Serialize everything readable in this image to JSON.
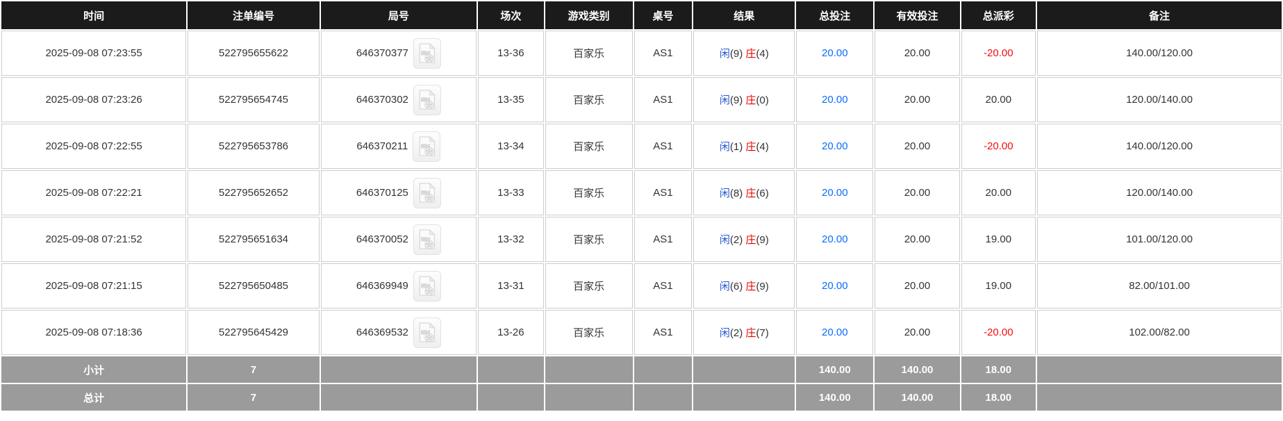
{
  "table": {
    "columns": [
      {
        "key": "time",
        "label": "时间"
      },
      {
        "key": "bet_id",
        "label": "注单编号"
      },
      {
        "key": "round_id",
        "label": "局号"
      },
      {
        "key": "session",
        "label": "场次"
      },
      {
        "key": "game_type",
        "label": "游戏类别"
      },
      {
        "key": "table_no",
        "label": "桌号"
      },
      {
        "key": "result",
        "label": "结果"
      },
      {
        "key": "total_bet",
        "label": "总投注"
      },
      {
        "key": "valid_bet",
        "label": "有效投注"
      },
      {
        "key": "payout",
        "label": "总派彩"
      },
      {
        "key": "remark",
        "label": "备注"
      }
    ],
    "rows": [
      {
        "time": "2025-09-08 07:23:55",
        "bet_id": "522795655622",
        "round_id": "646370377",
        "session": "13-36",
        "game_type": "百家乐",
        "table_no": "AS1",
        "result": {
          "player_label": "闲",
          "player_score": "(9)",
          "banker_label": "庄",
          "banker_score": "(4)"
        },
        "total_bet": "20.00",
        "valid_bet": "20.00",
        "payout": "-20.00",
        "remark": "140.00/120.00"
      },
      {
        "time": "2025-09-08 07:23:26",
        "bet_id": "522795654745",
        "round_id": "646370302",
        "session": "13-35",
        "game_type": "百家乐",
        "table_no": "AS1",
        "result": {
          "player_label": "闲",
          "player_score": "(9)",
          "banker_label": "庄",
          "banker_score": "(0)"
        },
        "total_bet": "20.00",
        "valid_bet": "20.00",
        "payout": "20.00",
        "remark": "120.00/140.00"
      },
      {
        "time": "2025-09-08 07:22:55",
        "bet_id": "522795653786",
        "round_id": "646370211",
        "session": "13-34",
        "game_type": "百家乐",
        "table_no": "AS1",
        "result": {
          "player_label": "闲",
          "player_score": "(1)",
          "banker_label": "庄",
          "banker_score": "(4)"
        },
        "total_bet": "20.00",
        "valid_bet": "20.00",
        "payout": "-20.00",
        "remark": "140.00/120.00"
      },
      {
        "time": "2025-09-08 07:22:21",
        "bet_id": "522795652652",
        "round_id": "646370125",
        "session": "13-33",
        "game_type": "百家乐",
        "table_no": "AS1",
        "result": {
          "player_label": "闲",
          "player_score": "(8)",
          "banker_label": "庄",
          "banker_score": "(6)"
        },
        "total_bet": "20.00",
        "valid_bet": "20.00",
        "payout": "20.00",
        "remark": "120.00/140.00"
      },
      {
        "time": "2025-09-08 07:21:52",
        "bet_id": "522795651634",
        "round_id": "646370052",
        "session": "13-32",
        "game_type": "百家乐",
        "table_no": "AS1",
        "result": {
          "player_label": "闲",
          "player_score": "(2)",
          "banker_label": "庄",
          "banker_score": "(9)"
        },
        "total_bet": "20.00",
        "valid_bet": "20.00",
        "payout": "19.00",
        "remark": "101.00/120.00"
      },
      {
        "time": "2025-09-08 07:21:15",
        "bet_id": "522795650485",
        "round_id": "646369949",
        "session": "13-31",
        "game_type": "百家乐",
        "table_no": "AS1",
        "result": {
          "player_label": "闲",
          "player_score": "(6)",
          "banker_label": "庄",
          "banker_score": "(9)"
        },
        "total_bet": "20.00",
        "valid_bet": "20.00",
        "payout": "19.00",
        "remark": "82.00/101.00"
      },
      {
        "time": "2025-09-08 07:18:36",
        "bet_id": "522795645429",
        "round_id": "646369532",
        "session": "13-26",
        "game_type": "百家乐",
        "table_no": "AS1",
        "result": {
          "player_label": "闲",
          "player_score": "(2)",
          "banker_label": "庄",
          "banker_score": "(7)"
        },
        "total_bet": "20.00",
        "valid_bet": "20.00",
        "payout": "-20.00",
        "remark": "102.00/82.00"
      }
    ],
    "subtotal": {
      "label": "小计",
      "count": "7",
      "total_bet": "140.00",
      "valid_bet": "140.00",
      "payout": "18.00"
    },
    "grand_total": {
      "label": "总计",
      "count": "7",
      "total_bet": "140.00",
      "valid_bet": "140.00",
      "payout": "18.00"
    }
  },
  "icons": {
    "round_video_icon": "video-file-icon"
  },
  "colors": {
    "header_bg": "#1b1b1b",
    "header_text": "#ffffff",
    "body_text": "#333333",
    "cell_border": "#cccccc",
    "footer_bg": "#9b9b9b",
    "total_bet_blue": "#0a6cff",
    "player_blue": "#2457d6",
    "banker_red": "#e60000",
    "negative_payout_red": "#f20d0d"
  }
}
